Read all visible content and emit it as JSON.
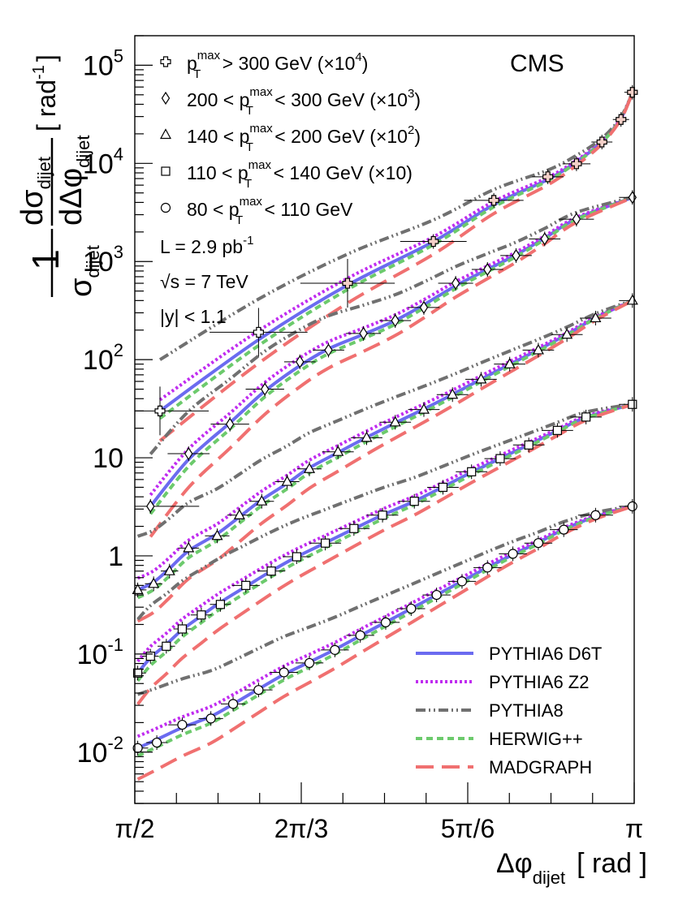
{
  "chart_data": {
    "type": "scatter",
    "brand": "CMS",
    "xlabel": {
      "main": "Δφ",
      "sub": "dijet",
      "unit": "[ rad ]"
    },
    "ylabel": {
      "one": "1",
      "sigma": "σ",
      "sigma_sub": "dijet",
      "dsigma": "dσ",
      "dsigma_sub": "dijet",
      "dphi": "dΔφ",
      "dphi_sub": "dijet",
      "unit": "[ rad",
      "unit_exp": "-1",
      "unit_close": "]"
    },
    "xlim": [
      1.5708,
      3.1416
    ],
    "ylim": [
      0.003,
      200000
    ],
    "yscale": "log",
    "xticks": [
      {
        "x": 1.5708,
        "label": "π/2"
      },
      {
        "x": 2.0944,
        "label": "2π/3"
      },
      {
        "x": 2.618,
        "label": "5π/6"
      },
      {
        "x": 3.1416,
        "label": "π"
      }
    ],
    "yticks": [
      {
        "y": 100000,
        "base": "10",
        "exp": "5"
      },
      {
        "y": 10000,
        "base": "10",
        "exp": "4"
      },
      {
        "y": 1000,
        "base": "10",
        "exp": "3"
      },
      {
        "y": 100,
        "base": "10",
        "exp": "2"
      },
      {
        "y": 10,
        "base": "10",
        "exp": ""
      },
      {
        "y": 1,
        "base": "1",
        "exp": ""
      },
      {
        "y": 0.1,
        "base": "10",
        "exp": "-1"
      },
      {
        "y": 0.01,
        "base": "10",
        "exp": "-2"
      }
    ],
    "info": [
      {
        "main": "L = 2.9 pb",
        "sup": "-1"
      },
      {
        "main": "√s = 7 TeV",
        "sup": ""
      },
      {
        "main": "|y| < 1.1",
        "sup": ""
      }
    ],
    "data_series": [
      {
        "marker": "cross",
        "pre": "p",
        "sub": "T",
        "sup": "max",
        "post": " > 300 GeV (×10",
        "scale_exp": "4",
        "close": ")",
        "points": [
          [
            1.65,
            30
          ],
          [
            1.96,
            190
          ],
          [
            2.24,
            600
          ],
          [
            2.51,
            1600
          ],
          [
            2.7,
            4200
          ],
          [
            2.87,
            7300
          ],
          [
            2.96,
            9900
          ],
          [
            3.04,
            16500
          ],
          [
            3.1,
            28000
          ],
          [
            3.136,
            53000
          ]
        ]
      },
      {
        "marker": "diamond",
        "pre": "200 < p",
        "sub": "T",
        "sup": "max",
        "post": " < 300 GeV (×10",
        "scale_exp": "3",
        "close": ")",
        "points": [
          [
            1.62,
            3.2
          ],
          [
            1.74,
            11
          ],
          [
            1.87,
            22
          ],
          [
            1.98,
            50
          ],
          [
            2.09,
            95
          ],
          [
            2.18,
            125
          ],
          [
            2.29,
            185
          ],
          [
            2.39,
            250
          ],
          [
            2.48,
            340
          ],
          [
            2.58,
            600
          ],
          [
            2.68,
            830
          ],
          [
            2.77,
            1150
          ],
          [
            2.86,
            1700
          ],
          [
            2.96,
            2700
          ],
          [
            3.136,
            4500
          ]
        ]
      },
      {
        "marker": "triangle",
        "pre": "140 < p",
        "sub": "T",
        "sup": "max",
        "post": " < 200 GeV (×10",
        "scale_exp": "2",
        "close": ")",
        "points": [
          [
            1.58,
            0.45
          ],
          [
            1.63,
            0.52
          ],
          [
            1.68,
            0.7
          ],
          [
            1.74,
            1.2
          ],
          [
            1.83,
            1.6
          ],
          [
            1.9,
            2.6
          ],
          [
            1.97,
            3.6
          ],
          [
            2.05,
            5.7
          ],
          [
            2.12,
            7.7
          ],
          [
            2.21,
            11.5
          ],
          [
            2.3,
            16
          ],
          [
            2.39,
            23
          ],
          [
            2.48,
            31
          ],
          [
            2.57,
            44
          ],
          [
            2.66,
            63
          ],
          [
            2.75,
            90
          ],
          [
            2.84,
            125
          ],
          [
            2.93,
            180
          ],
          [
            3.02,
            265
          ],
          [
            3.136,
            400
          ]
        ]
      },
      {
        "marker": "square",
        "pre": "110 < p",
        "sub": "T",
        "sup": "max",
        "post": " < 140 GeV (×10)",
        "scale_exp": "",
        "close": "",
        "points": [
          [
            1.58,
            0.064
          ],
          [
            1.62,
            0.095
          ],
          [
            1.67,
            0.12
          ],
          [
            1.72,
            0.18
          ],
          [
            1.78,
            0.25
          ],
          [
            1.84,
            0.32
          ],
          [
            1.92,
            0.5
          ],
          [
            2.0,
            0.7
          ],
          [
            2.08,
            0.98
          ],
          [
            2.17,
            1.35
          ],
          [
            2.26,
            1.9
          ],
          [
            2.35,
            2.6
          ],
          [
            2.45,
            3.6
          ],
          [
            2.54,
            5.0
          ],
          [
            2.63,
            7.2
          ],
          [
            2.72,
            9.8
          ],
          [
            2.81,
            13.5
          ],
          [
            2.9,
            19
          ],
          [
            2.99,
            26
          ],
          [
            3.136,
            35
          ]
        ]
      },
      {
        "marker": "circle",
        "pre": "80 < p",
        "sub": "T",
        "sup": "max",
        "post": " < 110 GeV",
        "scale_exp": "",
        "close": "",
        "points": [
          [
            1.58,
            0.011
          ],
          [
            1.64,
            0.0125
          ],
          [
            1.72,
            0.019
          ],
          [
            1.81,
            0.022
          ],
          [
            1.88,
            0.031
          ],
          [
            1.96,
            0.043
          ],
          [
            2.04,
            0.065
          ],
          [
            2.12,
            0.081
          ],
          [
            2.2,
            0.11
          ],
          [
            2.28,
            0.155
          ],
          [
            2.36,
            0.21
          ],
          [
            2.44,
            0.29
          ],
          [
            2.52,
            0.4
          ],
          [
            2.6,
            0.55
          ],
          [
            2.68,
            0.76
          ],
          [
            2.76,
            1.05
          ],
          [
            2.84,
            1.35
          ],
          [
            2.92,
            1.85
          ],
          [
            3.02,
            2.6
          ],
          [
            3.136,
            3.2
          ]
        ]
      }
    ],
    "curves": [
      {
        "name": "PYTHIA6 D6T",
        "color": "#6b6bf0",
        "dash": "",
        "offset": 0.0
      },
      {
        "name": "PYTHIA6 Z2",
        "color": "#c02cf0",
        "dash": "3,3",
        "offset": 0.12
      },
      {
        "name": "PYTHIA8",
        "color": "#707070",
        "dash": "12,4,2,4,2,4",
        "offset": 0.55
      },
      {
        "name": "HERWIG++",
        "color": "#6cca6c",
        "dash": "8,5",
        "offset": -0.08
      },
      {
        "name": "MADGRAPH",
        "color": "#f07070",
        "dash": "22,10",
        "offset": -0.32
      }
    ]
  }
}
